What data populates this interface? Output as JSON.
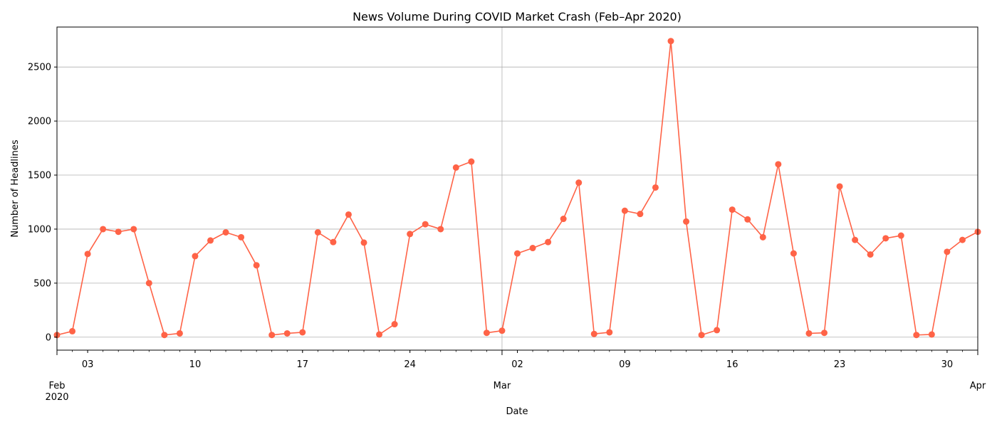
{
  "colors": {
    "line": "#ff6347",
    "marker": "#ff6347",
    "grid": "#b0b0b0",
    "axis": "#000000",
    "background": "#ffffff"
  },
  "chart_data": {
    "type": "line",
    "title": "News Volume During COVID Market Crash (Feb–Apr 2020)",
    "xlabel": "Date",
    "ylabel": "Number of Headlines",
    "xlim": [
      "2020-02-01",
      "2020-04-01"
    ],
    "ylim": [
      -120,
      2870
    ],
    "grid": true,
    "legend": "none",
    "marker": "circle",
    "yticks": [
      0,
      500,
      1000,
      1500,
      2000,
      2500
    ],
    "xticks_minor": [
      {
        "date": "2020-02-03",
        "label": "03"
      },
      {
        "date": "2020-02-10",
        "label": "10"
      },
      {
        "date": "2020-02-17",
        "label": "17"
      },
      {
        "date": "2020-02-24",
        "label": "24"
      },
      {
        "date": "2020-03-02",
        "label": "02"
      },
      {
        "date": "2020-03-09",
        "label": "09"
      },
      {
        "date": "2020-03-16",
        "label": "16"
      },
      {
        "date": "2020-03-23",
        "label": "23"
      },
      {
        "date": "2020-03-30",
        "label": "30"
      }
    ],
    "xticks_major": [
      {
        "date": "2020-02-01",
        "label": "Feb",
        "sublabel": "2020"
      },
      {
        "date": "2020-03-01",
        "label": "Mar",
        "sublabel": ""
      },
      {
        "date": "2020-04-01",
        "label": "Apr",
        "sublabel": ""
      }
    ],
    "x": [
      "2020-02-01",
      "2020-02-02",
      "2020-02-03",
      "2020-02-04",
      "2020-02-05",
      "2020-02-06",
      "2020-02-07",
      "2020-02-08",
      "2020-02-09",
      "2020-02-10",
      "2020-02-11",
      "2020-02-12",
      "2020-02-13",
      "2020-02-14",
      "2020-02-15",
      "2020-02-16",
      "2020-02-17",
      "2020-02-18",
      "2020-02-19",
      "2020-02-20",
      "2020-02-21",
      "2020-02-22",
      "2020-02-23",
      "2020-02-24",
      "2020-02-25",
      "2020-02-26",
      "2020-02-27",
      "2020-02-28",
      "2020-02-29",
      "2020-03-01",
      "2020-03-02",
      "2020-03-03",
      "2020-03-04",
      "2020-03-05",
      "2020-03-06",
      "2020-03-07",
      "2020-03-08",
      "2020-03-09",
      "2020-03-10",
      "2020-03-11",
      "2020-03-12",
      "2020-03-13",
      "2020-03-14",
      "2020-03-15",
      "2020-03-16",
      "2020-03-17",
      "2020-03-18",
      "2020-03-19",
      "2020-03-20",
      "2020-03-21",
      "2020-03-22",
      "2020-03-23",
      "2020-03-24",
      "2020-03-25",
      "2020-03-26",
      "2020-03-27",
      "2020-03-28",
      "2020-03-29",
      "2020-03-30",
      "2020-03-31",
      "2020-04-01"
    ],
    "series": [
      {
        "values": [
          20,
          55,
          770,
          1000,
          975,
          1000,
          500,
          20,
          35,
          750,
          895,
          970,
          925,
          665,
          20,
          35,
          45,
          970,
          880,
          1135,
          875,
          25,
          120,
          955,
          1045,
          1000,
          1570,
          1625,
          40,
          60,
          775,
          825,
          880,
          1095,
          1430,
          30,
          45,
          1170,
          1140,
          1385,
          2740,
          1070,
          20,
          65,
          1180,
          1090,
          925,
          1600,
          775,
          35,
          40,
          1395,
          900,
          765,
          915,
          940,
          20,
          25,
          790,
          900,
          975
        ]
      }
    ]
  }
}
